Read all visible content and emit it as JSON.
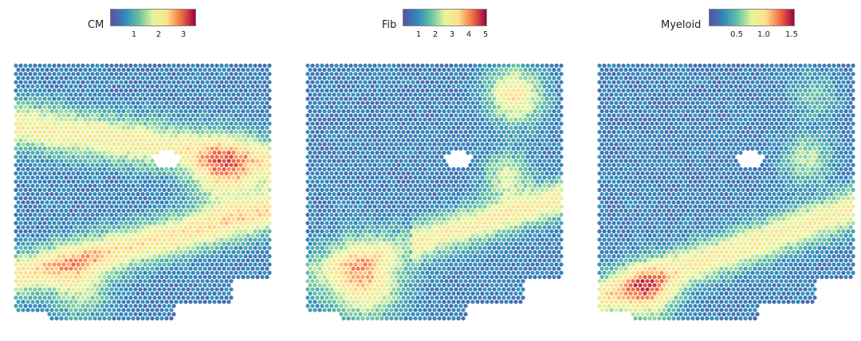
{
  "panels": [
    {
      "label": "CM",
      "ticks": [
        "1",
        "2",
        "3"
      ],
      "colormap_stops": [
        "#5e4fa2",
        "#3288bd",
        "#66c2a5",
        "#e6f598",
        "#fee08b",
        "#f46d43",
        "#9e0142"
      ],
      "hot_regions": "bands"
    },
    {
      "label": "Fib",
      "ticks": [
        "1",
        "2",
        "3",
        "4",
        "5"
      ],
      "colormap_stops": [
        "#5e4fa2",
        "#3288bd",
        "#66c2a5",
        "#e6f598",
        "#fee08b",
        "#f46d43",
        "#9e0142"
      ],
      "hot_regions": "lower-left"
    },
    {
      "label": "Myeloid",
      "ticks": [
        "0.5",
        "1.0",
        "1.5"
      ],
      "colormap_stops": [
        "#5e4fa2",
        "#3288bd",
        "#66c2a5",
        "#e6f598",
        "#fee08b",
        "#f46d43",
        "#9e0142"
      ],
      "hot_regions": "diagonal"
    }
  ]
}
